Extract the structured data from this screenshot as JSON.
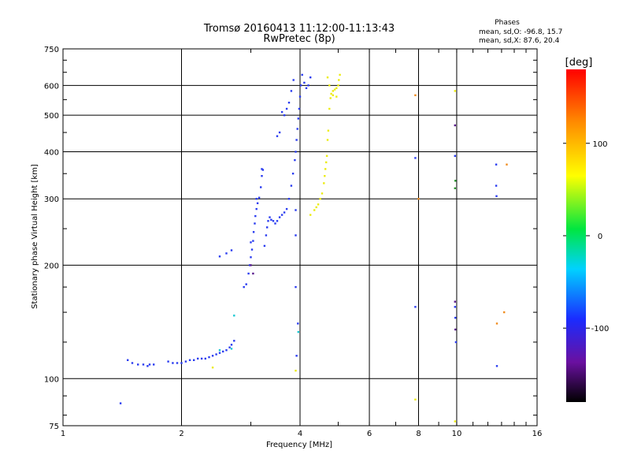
{
  "chart_data": {
    "type": "scatter",
    "title": "Tromsø 20160413 11:12:00-11:13:43",
    "subtitle": "RwPretec (8p)",
    "xlabel": "Frequency [MHz]",
    "ylabel": "Stationary phase Virtual Height [km]",
    "x_scale": "log",
    "y_scale": "log",
    "xlim": [
      1,
      16
    ],
    "ylim": [
      75,
      750
    ],
    "x_ticks": [
      1,
      2,
      4,
      6,
      8,
      10,
      16
    ],
    "x_tick_labels": [
      "1",
      "2",
      "4",
      "6",
      "8",
      "10",
      "16"
    ],
    "y_ticks": [
      75,
      100,
      200,
      300,
      400,
      500,
      600,
      750
    ],
    "y_tick_labels": [
      "75",
      "100",
      "200",
      "300",
      "400",
      "500",
      "600",
      "750"
    ],
    "grid": true,
    "stats": {
      "heading": "Phases",
      "line_o": "mean, sd,O: -96.8, 15.7",
      "line_x": "mean, sd,X:  87.6, 20.4"
    },
    "colorbar": {
      "label": "[deg]",
      "range": [
        -180,
        180
      ],
      "ticks": [
        100,
        0,
        -100
      ],
      "tick_labels": [
        "100",
        "0",
        "-100"
      ]
    },
    "series": [
      {
        "mode": "O",
        "color": "#2a3cf0",
        "points": [
          [
            1.4,
            86
          ],
          [
            1.46,
            112
          ],
          [
            1.5,
            110
          ],
          [
            1.55,
            109
          ],
          [
            1.6,
            109
          ],
          [
            1.64,
            108
          ],
          [
            1.66,
            109
          ],
          [
            1.7,
            109
          ],
          [
            1.85,
            111
          ],
          [
            1.9,
            110
          ],
          [
            1.95,
            110
          ],
          [
            2.0,
            110
          ],
          [
            2.05,
            111
          ],
          [
            2.1,
            112
          ],
          [
            2.15,
            112
          ],
          [
            2.2,
            113
          ],
          [
            2.25,
            113
          ],
          [
            2.3,
            113
          ],
          [
            2.35,
            114
          ],
          [
            2.4,
            115
          ],
          [
            2.45,
            116
          ],
          [
            2.5,
            117
          ],
          [
            2.55,
            118
          ],
          [
            2.6,
            119
          ],
          [
            2.65,
            121
          ],
          [
            2.68,
            123
          ],
          [
            2.72,
            126
          ],
          [
            2.5,
            211
          ],
          [
            2.6,
            215
          ],
          [
            2.68,
            219
          ],
          [
            2.88,
            175
          ],
          [
            2.92,
            178
          ],
          [
            2.96,
            190
          ],
          [
            2.98,
            200
          ],
          [
            3.0,
            210
          ],
          [
            3.02,
            220
          ],
          [
            3.04,
            232
          ],
          [
            3.05,
            245
          ],
          [
            3.07,
            258
          ],
          [
            3.08,
            270
          ],
          [
            3.1,
            282
          ],
          [
            3.12,
            292
          ],
          [
            3.15,
            302
          ],
          [
            3.18,
            322
          ],
          [
            3.2,
            345
          ],
          [
            3.22,
            358
          ],
          [
            3.25,
            225
          ],
          [
            3.28,
            240
          ],
          [
            3.3,
            252
          ],
          [
            3.32,
            262
          ],
          [
            3.35,
            268
          ],
          [
            3.38,
            264
          ],
          [
            3.42,
            262
          ],
          [
            3.46,
            258
          ],
          [
            3.5,
            262
          ],
          [
            3.55,
            268
          ],
          [
            3.6,
            272
          ],
          [
            3.65,
            276
          ],
          [
            3.7,
            282
          ],
          [
            3.75,
            300
          ],
          [
            3.8,
            325
          ],
          [
            3.84,
            350
          ],
          [
            3.88,
            380
          ],
          [
            3.9,
            400
          ],
          [
            3.92,
            430
          ],
          [
            3.94,
            460
          ],
          [
            3.96,
            490
          ],
          [
            3.98,
            520
          ],
          [
            4.0,
            560
          ],
          [
            4.02,
            600
          ],
          [
            4.05,
            640
          ],
          [
            4.1,
            610
          ],
          [
            4.15,
            590
          ],
          [
            4.2,
            600
          ],
          [
            4.25,
            630
          ],
          [
            3.85,
            620
          ],
          [
            3.8,
            580
          ],
          [
            3.75,
            540
          ],
          [
            3.7,
            520
          ],
          [
            3.65,
            500
          ],
          [
            3.6,
            510
          ],
          [
            3.55,
            450
          ],
          [
            3.5,
            440
          ],
          [
            3.2,
            360
          ],
          [
            3.1,
            300
          ],
          [
            3.0,
            230
          ],
          [
            3.9,
            240
          ],
          [
            3.9,
            280
          ],
          [
            3.9,
            175
          ],
          [
            3.92,
            115
          ],
          [
            3.95,
            140
          ],
          [
            7.85,
            385
          ],
          [
            7.85,
            155
          ],
          [
            9.9,
            390
          ],
          [
            9.9,
            155
          ],
          [
            9.92,
            145
          ],
          [
            9.95,
            125
          ],
          [
            12.6,
            370
          ],
          [
            12.6,
            325
          ],
          [
            12.62,
            305
          ],
          [
            12.65,
            108
          ]
        ]
      },
      {
        "mode": "X",
        "color": "#ecec10",
        "points": [
          [
            4.25,
            272
          ],
          [
            4.35,
            280
          ],
          [
            4.4,
            285
          ],
          [
            4.45,
            290
          ],
          [
            4.5,
            300
          ],
          [
            4.55,
            310
          ],
          [
            4.6,
            330
          ],
          [
            4.62,
            345
          ],
          [
            4.64,
            360
          ],
          [
            4.66,
            375
          ],
          [
            4.68,
            390
          ],
          [
            4.7,
            430
          ],
          [
            4.72,
            455
          ],
          [
            4.75,
            520
          ],
          [
            4.78,
            555
          ],
          [
            4.8,
            570
          ],
          [
            4.85,
            580
          ],
          [
            4.9,
            585
          ],
          [
            4.95,
            590
          ],
          [
            5.0,
            600
          ],
          [
            5.02,
            620
          ],
          [
            5.05,
            640
          ],
          [
            4.95,
            560
          ],
          [
            4.85,
            565
          ],
          [
            4.75,
            600
          ],
          [
            4.7,
            630
          ],
          [
            3.9,
            105
          ],
          [
            2.4,
            107
          ],
          [
            7.85,
            88
          ],
          [
            9.9,
            580
          ],
          [
            9.9,
            77
          ]
        ]
      },
      {
        "mode": "other",
        "color": "#19c8d2",
        "points": [
          [
            2.72,
            147
          ],
          [
            2.68,
            120
          ],
          [
            2.5,
            119
          ],
          [
            3.96,
            133
          ]
        ]
      },
      {
        "mode": "other",
        "color": "#2c9632",
        "points": [
          [
            9.9,
            320
          ],
          [
            9.92,
            335
          ]
        ]
      },
      {
        "mode": "other",
        "color": "#f08c1e",
        "points": [
          [
            7.85,
            565
          ],
          [
            13.4,
            370
          ],
          [
            12.65,
            140
          ],
          [
            13.2,
            150
          ],
          [
            8.0,
            300
          ]
        ]
      },
      {
        "mode": "other",
        "color": "#5a1a8c",
        "points": [
          [
            9.9,
            470
          ],
          [
            9.92,
            135
          ],
          [
            3.0,
            200
          ],
          [
            3.04,
            190
          ],
          [
            9.9,
            160
          ]
        ]
      }
    ]
  }
}
